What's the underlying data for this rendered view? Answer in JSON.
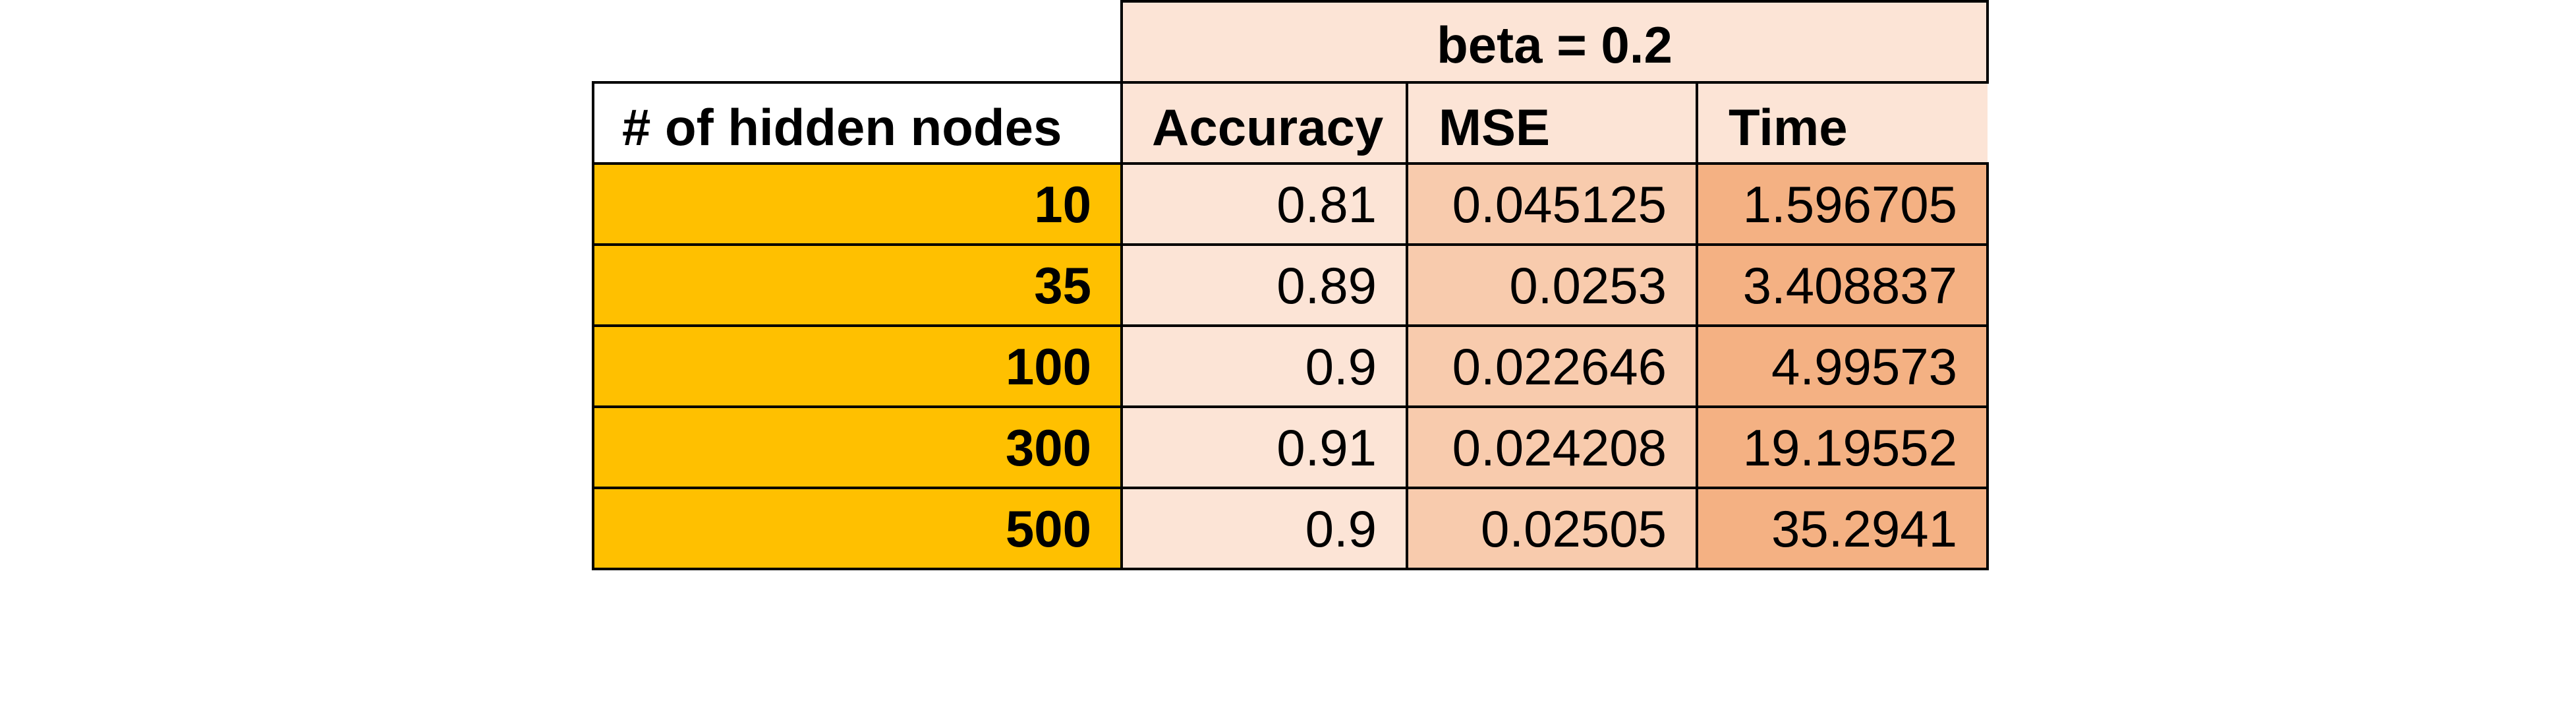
{
  "chart_data": {
    "type": "table",
    "group_header": "beta = 0.2",
    "columns": [
      "# of hidden nodes",
      "Accuracy",
      "MSE",
      "Time"
    ],
    "rows": [
      {
        "nodes": "10",
        "accuracy": "0.81",
        "mse": "0.045125",
        "time": "1.596705"
      },
      {
        "nodes": "35",
        "accuracy": "0.89",
        "mse": "0.0253",
        "time": "3.408837"
      },
      {
        "nodes": "100",
        "accuracy": "0.9",
        "mse": "0.022646",
        "time": "4.99573"
      },
      {
        "nodes": "300",
        "accuracy": "0.91",
        "mse": "0.024208",
        "time": "19.19552"
      },
      {
        "nodes": "500",
        "accuracy": "0.9",
        "mse": "0.02505",
        "time": "35.2941"
      }
    ]
  },
  "colors": {
    "row_label_fill": "#ffc000",
    "accuracy_fill": "#fce4d6",
    "mse_fill": "#f8cbad",
    "time_fill": "#f4b183",
    "header_fill": "#fce4d6"
  }
}
